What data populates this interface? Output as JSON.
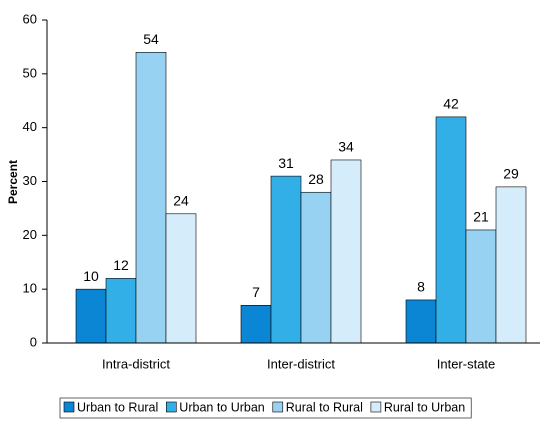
{
  "chart_data": {
    "type": "bar",
    "y_label": "Percent",
    "categories": [
      "Intra-district",
      "Inter-district",
      "Inter-state"
    ],
    "series": [
      {
        "name": "Urban to Rural",
        "color": "#0b86d4",
        "values": [
          10,
          7,
          8
        ]
      },
      {
        "name": "Urban to Urban",
        "color": "#33afe8",
        "values": [
          12,
          31,
          42
        ]
      },
      {
        "name": "Rural to Rural",
        "color": "#97d2f3",
        "values": [
          54,
          28,
          21
        ]
      },
      {
        "name": "Rural to Urban",
        "color": "#d5edfb",
        "values": [
          24,
          34,
          29
        ]
      }
    ],
    "ylim": [
      0,
      60
    ],
    "yticks": [
      0,
      10,
      20,
      30,
      40,
      50,
      60
    ],
    "grid": false,
    "legend": "bottom"
  }
}
